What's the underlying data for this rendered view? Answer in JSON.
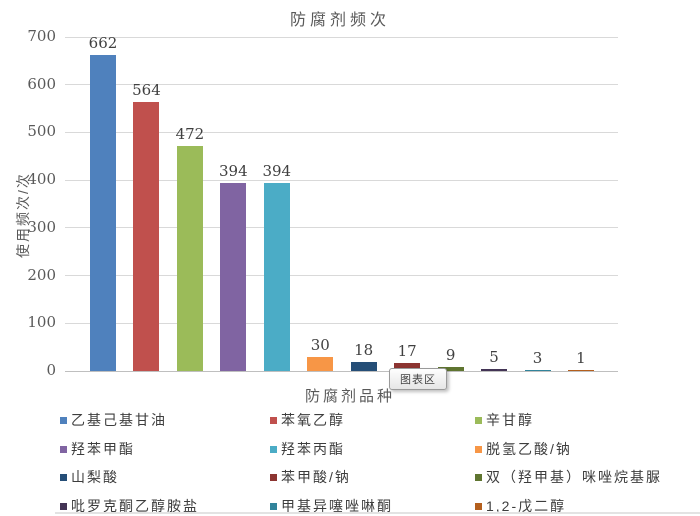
{
  "chart_data": {
    "type": "bar",
    "title": "防腐剂频次",
    "xlabel": "防腐剂品种",
    "ylabel": "使用频次/次",
    "categories": [
      "乙基己基甘油",
      "苯氧乙醇",
      "辛甘醇",
      "羟苯甲酯",
      "羟苯丙酯",
      "脱氢乙酸/钠",
      "山梨酸",
      "苯甲酸/钠",
      "双（羟甲基）咪唑烷基脲",
      "吡罗克酮乙醇胺盐",
      "甲基异噻唑啉酮",
      "1,2-戊二醇"
    ],
    "values": [
      662,
      564,
      472,
      394,
      394,
      30,
      18,
      17,
      9,
      5,
      3,
      1
    ],
    "colors": [
      "#4f81bd",
      "#c0504d",
      "#9bbb59",
      "#8064a2",
      "#4bacc6",
      "#f79646",
      "#254e77",
      "#8c3431",
      "#5f7530",
      "#433455",
      "#31849b",
      "#b45f1d"
    ],
    "ylim": [
      0,
      700
    ],
    "yticks": [
      0,
      100,
      200,
      300,
      400,
      500,
      600,
      700
    ],
    "grid": true,
    "gridline_color": "#d9d9d9",
    "legend_position": "bottom",
    "tooltip": "图表区",
    "title_color": "#595959",
    "value_label_color": "#404040"
  }
}
